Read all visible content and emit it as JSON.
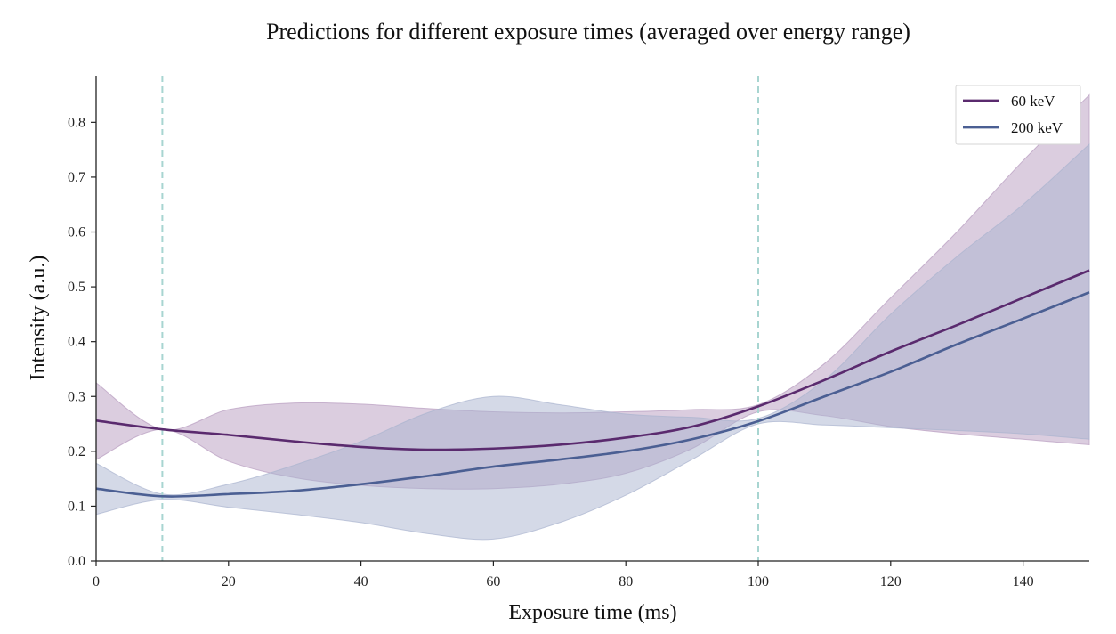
{
  "chart_data": {
    "type": "line",
    "title": "Predictions for different exposure times (averaged over energy range)",
    "xlabel": "Exposure time (ms)",
    "ylabel": "Intensity (a.u.)",
    "xlim": [
      0,
      150
    ],
    "ylim": [
      0,
      0.885
    ],
    "xticks": [
      0,
      20,
      40,
      60,
      80,
      100,
      120,
      140
    ],
    "xtick_labels": [
      "0",
      "20",
      "40",
      "60",
      "80",
      "100",
      "120",
      "140"
    ],
    "yticks": [
      0.0,
      0.1,
      0.2,
      0.3,
      0.4,
      0.5,
      0.6,
      0.7,
      0.8
    ],
    "ytick_labels": [
      "0.0",
      "0.1",
      "0.2",
      "0.3",
      "0.4",
      "0.5",
      "0.6",
      "0.7",
      "0.8"
    ],
    "grid": false,
    "legend_position": "top-right",
    "vlines": [
      {
        "x": 10,
        "color": "#a8d5d1",
        "style": "dashed"
      },
      {
        "x": 100,
        "color": "#a8d5d1",
        "style": "dashed"
      }
    ],
    "series": [
      {
        "name": "60 keV",
        "color": "#5a2a6e",
        "band_color": "#b79bbf",
        "x": [
          0,
          10,
          20,
          30,
          40,
          50,
          60,
          70,
          80,
          90,
          100,
          110,
          120,
          130,
          140,
          150
        ],
        "y": [
          0.256,
          0.24,
          0.23,
          0.218,
          0.208,
          0.203,
          0.205,
          0.212,
          0.225,
          0.245,
          0.282,
          0.33,
          0.382,
          0.43,
          0.48,
          0.53
        ],
        "upper": [
          0.325,
          0.24,
          0.276,
          0.288,
          0.286,
          0.278,
          0.272,
          0.27,
          0.272,
          0.276,
          0.285,
          0.36,
          0.48,
          0.6,
          0.73,
          0.85
        ],
        "lower": [
          0.185,
          0.24,
          0.182,
          0.152,
          0.138,
          0.132,
          0.132,
          0.14,
          0.16,
          0.205,
          0.272,
          0.265,
          0.245,
          0.232,
          0.222,
          0.212
        ]
      },
      {
        "name": "200 keV",
        "color": "#4b5f93",
        "band_color": "#aab4cf",
        "x": [
          0,
          10,
          20,
          30,
          40,
          50,
          60,
          70,
          80,
          90,
          100,
          110,
          120,
          130,
          140,
          150
        ],
        "y": [
          0.132,
          0.118,
          0.122,
          0.128,
          0.14,
          0.155,
          0.172,
          0.185,
          0.2,
          0.222,
          0.255,
          0.3,
          0.345,
          0.395,
          0.442,
          0.49
        ],
        "upper": [
          0.178,
          0.122,
          0.14,
          0.175,
          0.218,
          0.27,
          0.3,
          0.285,
          0.268,
          0.262,
          0.26,
          0.33,
          0.45,
          0.555,
          0.65,
          0.76
        ],
        "lower": [
          0.085,
          0.112,
          0.098,
          0.085,
          0.07,
          0.05,
          0.04,
          0.07,
          0.12,
          0.185,
          0.25,
          0.248,
          0.243,
          0.238,
          0.232,
          0.222
        ]
      }
    ]
  }
}
